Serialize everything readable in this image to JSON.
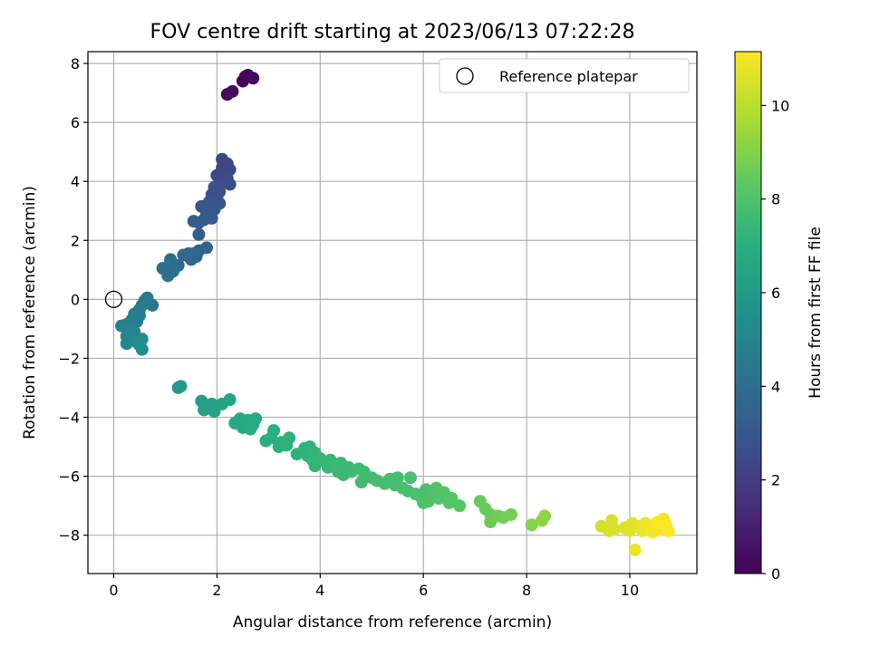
{
  "chart_data": {
    "type": "scatter",
    "title": "FOV centre drift starting at 2023/06/13 07:22:28",
    "xlabel": "Angular distance from reference (arcmin)",
    "ylabel": "Rotation from reference (arcmin)",
    "xlim": [
      -0.5,
      11.3
    ],
    "ylim": [
      -9.3,
      8.4
    ],
    "xticks": [
      0,
      2,
      4,
      6,
      8,
      10
    ],
    "yticks": [
      -8,
      -6,
      -4,
      -2,
      0,
      2,
      4,
      6,
      8
    ],
    "xtick_labels": [
      "0",
      "2",
      "4",
      "6",
      "8",
      "10"
    ],
    "ytick_labels": [
      "−8",
      "−6",
      "−4",
      "−2",
      "0",
      "2",
      "4",
      "6",
      "8"
    ],
    "grid": true,
    "legend": {
      "position": "top-right",
      "entries": [
        "Reference platepar"
      ]
    },
    "reference_point": {
      "x": 0,
      "y": 0,
      "name": "Reference platepar"
    },
    "colorbar": {
      "label": "Hours from first FF file",
      "colormap": "viridis",
      "range": [
        0,
        11.15
      ],
      "ticks": [
        0,
        2,
        4,
        6,
        8,
        10
      ],
      "tick_labels": [
        "0",
        "2",
        "4",
        "6",
        "8",
        "10"
      ]
    },
    "points": [
      {
        "x": 2.2,
        "y": 6.95,
        "h": 0.3
      },
      {
        "x": 2.3,
        "y": 7.05,
        "h": 0.4
      },
      {
        "x": 2.5,
        "y": 7.4,
        "h": 0.1
      },
      {
        "x": 2.55,
        "y": 7.55,
        "h": 0.15
      },
      {
        "x": 2.6,
        "y": 7.6,
        "h": 0.2
      },
      {
        "x": 2.7,
        "y": 7.5,
        "h": 0.25
      },
      {
        "x": 2.1,
        "y": 4.75,
        "h": 2.3
      },
      {
        "x": 2.2,
        "y": 4.6,
        "h": 2.35
      },
      {
        "x": 2.25,
        "y": 4.4,
        "h": 2.4
      },
      {
        "x": 2.1,
        "y": 4.45,
        "h": 2.45
      },
      {
        "x": 2.0,
        "y": 4.2,
        "h": 2.5
      },
      {
        "x": 2.2,
        "y": 4.1,
        "h": 2.55
      },
      {
        "x": 2.25,
        "y": 3.9,
        "h": 2.6
      },
      {
        "x": 2.1,
        "y": 3.95,
        "h": 2.65
      },
      {
        "x": 1.95,
        "y": 3.8,
        "h": 2.7
      },
      {
        "x": 2.05,
        "y": 3.65,
        "h": 2.75
      },
      {
        "x": 1.9,
        "y": 3.55,
        "h": 2.8
      },
      {
        "x": 2.0,
        "y": 3.45,
        "h": 2.85
      },
      {
        "x": 2.05,
        "y": 3.25,
        "h": 2.9
      },
      {
        "x": 1.85,
        "y": 3.3,
        "h": 2.95
      },
      {
        "x": 1.7,
        "y": 3.15,
        "h": 3.0
      },
      {
        "x": 1.95,
        "y": 3.05,
        "h": 3.05
      },
      {
        "x": 1.8,
        "y": 2.9,
        "h": 3.1
      },
      {
        "x": 1.9,
        "y": 2.75,
        "h": 3.15
      },
      {
        "x": 1.75,
        "y": 2.7,
        "h": 3.2
      },
      {
        "x": 1.65,
        "y": 2.6,
        "h": 3.25
      },
      {
        "x": 1.55,
        "y": 2.65,
        "h": 3.3
      },
      {
        "x": 1.65,
        "y": 2.2,
        "h": 3.35
      },
      {
        "x": 1.8,
        "y": 1.75,
        "h": 3.5
      },
      {
        "x": 1.65,
        "y": 1.65,
        "h": 3.55
      },
      {
        "x": 1.55,
        "y": 1.55,
        "h": 3.6
      },
      {
        "x": 1.6,
        "y": 1.45,
        "h": 3.65
      },
      {
        "x": 1.45,
        "y": 1.55,
        "h": 3.7
      },
      {
        "x": 1.35,
        "y": 1.5,
        "h": 3.75
      },
      {
        "x": 1.5,
        "y": 1.35,
        "h": 3.8
      },
      {
        "x": 1.25,
        "y": 1.15,
        "h": 3.9
      },
      {
        "x": 1.1,
        "y": 1.35,
        "h": 3.95
      },
      {
        "x": 1.05,
        "y": 1.1,
        "h": 4.0
      },
      {
        "x": 0.95,
        "y": 1.05,
        "h": 4.05
      },
      {
        "x": 1.15,
        "y": 0.95,
        "h": 4.1
      },
      {
        "x": 1.05,
        "y": 0.8,
        "h": 4.15
      },
      {
        "x": 0.75,
        "y": -0.2,
        "h": 4.4
      },
      {
        "x": 0.65,
        "y": 0.05,
        "h": 4.45
      },
      {
        "x": 0.6,
        "y": -0.05,
        "h": 4.5
      },
      {
        "x": 0.55,
        "y": -0.2,
        "h": 4.55
      },
      {
        "x": 0.5,
        "y": -0.35,
        "h": 4.6
      },
      {
        "x": 0.5,
        "y": -0.55,
        "h": 4.65
      },
      {
        "x": 0.4,
        "y": -0.5,
        "h": 4.7
      },
      {
        "x": 0.45,
        "y": -0.75,
        "h": 4.75
      },
      {
        "x": 0.35,
        "y": -0.7,
        "h": 4.8
      },
      {
        "x": 0.25,
        "y": -0.85,
        "h": 4.85
      },
      {
        "x": 0.15,
        "y": -0.9,
        "h": 4.9
      },
      {
        "x": 0.3,
        "y": -1.0,
        "h": 4.95
      },
      {
        "x": 0.4,
        "y": -1.1,
        "h": 5.0
      },
      {
        "x": 0.35,
        "y": -1.3,
        "h": 5.05
      },
      {
        "x": 0.25,
        "y": -1.25,
        "h": 5.1
      },
      {
        "x": 0.25,
        "y": -1.5,
        "h": 5.15
      },
      {
        "x": 0.45,
        "y": -1.45,
        "h": 5.2
      },
      {
        "x": 0.55,
        "y": -1.35,
        "h": 5.25
      },
      {
        "x": 0.5,
        "y": -1.55,
        "h": 5.3
      },
      {
        "x": 0.55,
        "y": -1.7,
        "h": 5.35
      },
      {
        "x": 1.25,
        "y": -3.0,
        "h": 6.0
      },
      {
        "x": 1.3,
        "y": -2.95,
        "h": 6.05
      },
      {
        "x": 1.7,
        "y": -3.45,
        "h": 6.2
      },
      {
        "x": 1.8,
        "y": -3.6,
        "h": 6.25
      },
      {
        "x": 1.75,
        "y": -3.75,
        "h": 6.3
      },
      {
        "x": 1.9,
        "y": -3.55,
        "h": 6.35
      },
      {
        "x": 1.95,
        "y": -3.8,
        "h": 6.4
      },
      {
        "x": 2.1,
        "y": -3.55,
        "h": 6.45
      },
      {
        "x": 2.25,
        "y": -3.4,
        "h": 6.5
      },
      {
        "x": 2.35,
        "y": -4.2,
        "h": 6.6
      },
      {
        "x": 2.45,
        "y": -4.05,
        "h": 6.65
      },
      {
        "x": 2.5,
        "y": -4.35,
        "h": 6.7
      },
      {
        "x": 2.6,
        "y": -4.1,
        "h": 6.75
      },
      {
        "x": 2.7,
        "y": -4.25,
        "h": 6.8
      },
      {
        "x": 2.75,
        "y": -4.05,
        "h": 6.85
      },
      {
        "x": 2.65,
        "y": -4.4,
        "h": 6.9
      },
      {
        "x": 2.95,
        "y": -4.8,
        "h": 6.95
      },
      {
        "x": 3.05,
        "y": -4.7,
        "h": 7.0
      },
      {
        "x": 3.1,
        "y": -4.45,
        "h": 7.05
      },
      {
        "x": 3.2,
        "y": -5.0,
        "h": 7.1
      },
      {
        "x": 3.25,
        "y": -4.85,
        "h": 7.12
      },
      {
        "x": 3.35,
        "y": -4.95,
        "h": 7.15
      },
      {
        "x": 3.4,
        "y": -4.7,
        "h": 7.17
      },
      {
        "x": 3.55,
        "y": -5.25,
        "h": 7.2
      },
      {
        "x": 3.7,
        "y": -5.05,
        "h": 7.22
      },
      {
        "x": 3.75,
        "y": -5.3,
        "h": 7.25
      },
      {
        "x": 3.8,
        "y": -5.0,
        "h": 7.27
      },
      {
        "x": 3.85,
        "y": -5.45,
        "h": 7.3
      },
      {
        "x": 3.9,
        "y": -5.2,
        "h": 7.32
      },
      {
        "x": 3.9,
        "y": -5.65,
        "h": 7.35
      },
      {
        "x": 4.0,
        "y": -5.4,
        "h": 7.37
      },
      {
        "x": 4.1,
        "y": -5.5,
        "h": 7.4
      },
      {
        "x": 4.15,
        "y": -5.7,
        "h": 7.42
      },
      {
        "x": 4.2,
        "y": -5.45,
        "h": 7.45
      },
      {
        "x": 4.3,
        "y": -5.6,
        "h": 7.47
      },
      {
        "x": 4.35,
        "y": -5.85,
        "h": 7.5
      },
      {
        "x": 4.4,
        "y": -5.55,
        "h": 7.52
      },
      {
        "x": 4.45,
        "y": -5.95,
        "h": 7.55
      },
      {
        "x": 4.55,
        "y": -5.7,
        "h": 7.57
      },
      {
        "x": 4.6,
        "y": -5.85,
        "h": 7.6
      },
      {
        "x": 4.75,
        "y": -5.75,
        "h": 7.62
      },
      {
        "x": 4.85,
        "y": -5.85,
        "h": 7.65
      },
      {
        "x": 4.8,
        "y": -6.2,
        "h": 7.67
      },
      {
        "x": 5.0,
        "y": -6.05,
        "h": 7.7
      },
      {
        "x": 5.1,
        "y": -6.15,
        "h": 7.72
      },
      {
        "x": 5.25,
        "y": -6.25,
        "h": 7.75
      },
      {
        "x": 5.35,
        "y": -6.1,
        "h": 7.77
      },
      {
        "x": 5.45,
        "y": -6.3,
        "h": 7.8
      },
      {
        "x": 5.5,
        "y": -6.05,
        "h": 7.82
      },
      {
        "x": 5.6,
        "y": -6.4,
        "h": 7.85
      },
      {
        "x": 5.7,
        "y": -6.5,
        "h": 7.87
      },
      {
        "x": 5.75,
        "y": -6.05,
        "h": 7.9
      },
      {
        "x": 5.85,
        "y": -6.6,
        "h": 7.92
      },
      {
        "x": 5.95,
        "y": -6.7,
        "h": 7.95
      },
      {
        "x": 6.05,
        "y": -6.45,
        "h": 7.97
      },
      {
        "x": 6.0,
        "y": -6.9,
        "h": 8.0
      },
      {
        "x": 6.1,
        "y": -6.85,
        "h": 8.02
      },
      {
        "x": 6.2,
        "y": -6.6,
        "h": 8.05
      },
      {
        "x": 6.25,
        "y": -6.4,
        "h": 8.07
      },
      {
        "x": 6.3,
        "y": -6.75,
        "h": 8.1
      },
      {
        "x": 6.4,
        "y": -6.55,
        "h": 8.12
      },
      {
        "x": 6.5,
        "y": -6.9,
        "h": 8.15
      },
      {
        "x": 6.55,
        "y": -6.75,
        "h": 8.17
      },
      {
        "x": 6.7,
        "y": -7.0,
        "h": 8.2
      },
      {
        "x": 7.1,
        "y": -6.85,
        "h": 8.5
      },
      {
        "x": 7.2,
        "y": -7.1,
        "h": 8.55
      },
      {
        "x": 7.3,
        "y": -7.3,
        "h": 8.6
      },
      {
        "x": 7.3,
        "y": -7.55,
        "h": 8.65
      },
      {
        "x": 7.45,
        "y": -7.35,
        "h": 8.7
      },
      {
        "x": 7.55,
        "y": -7.4,
        "h": 8.75
      },
      {
        "x": 7.7,
        "y": -7.3,
        "h": 8.8
      },
      {
        "x": 8.1,
        "y": -7.65,
        "h": 9.1
      },
      {
        "x": 8.3,
        "y": -7.5,
        "h": 9.2
      },
      {
        "x": 8.35,
        "y": -7.35,
        "h": 9.25
      },
      {
        "x": 9.45,
        "y": -7.7,
        "h": 10.4
      },
      {
        "x": 9.6,
        "y": -7.85,
        "h": 10.45
      },
      {
        "x": 9.65,
        "y": -7.5,
        "h": 10.5
      },
      {
        "x": 9.7,
        "y": -7.8,
        "h": 10.55
      },
      {
        "x": 9.9,
        "y": -7.75,
        "h": 10.6
      },
      {
        "x": 10.0,
        "y": -7.85,
        "h": 10.65
      },
      {
        "x": 10.05,
        "y": -7.6,
        "h": 10.7
      },
      {
        "x": 10.15,
        "y": -7.7,
        "h": 10.75
      },
      {
        "x": 10.1,
        "y": -8.5,
        "h": 10.8
      },
      {
        "x": 10.25,
        "y": -7.85,
        "h": 10.85
      },
      {
        "x": 10.3,
        "y": -7.6,
        "h": 10.9
      },
      {
        "x": 10.4,
        "y": -7.75,
        "h": 10.95
      },
      {
        "x": 10.45,
        "y": -7.9,
        "h": 11.0
      },
      {
        "x": 10.5,
        "y": -7.6,
        "h": 11.02
      },
      {
        "x": 10.6,
        "y": -7.8,
        "h": 11.05
      },
      {
        "x": 10.65,
        "y": -7.45,
        "h": 11.08
      },
      {
        "x": 10.7,
        "y": -7.65,
        "h": 11.1
      },
      {
        "x": 10.75,
        "y": -7.85,
        "h": 11.12
      },
      {
        "x": 10.55,
        "y": -7.55,
        "h": 11.15
      }
    ]
  }
}
